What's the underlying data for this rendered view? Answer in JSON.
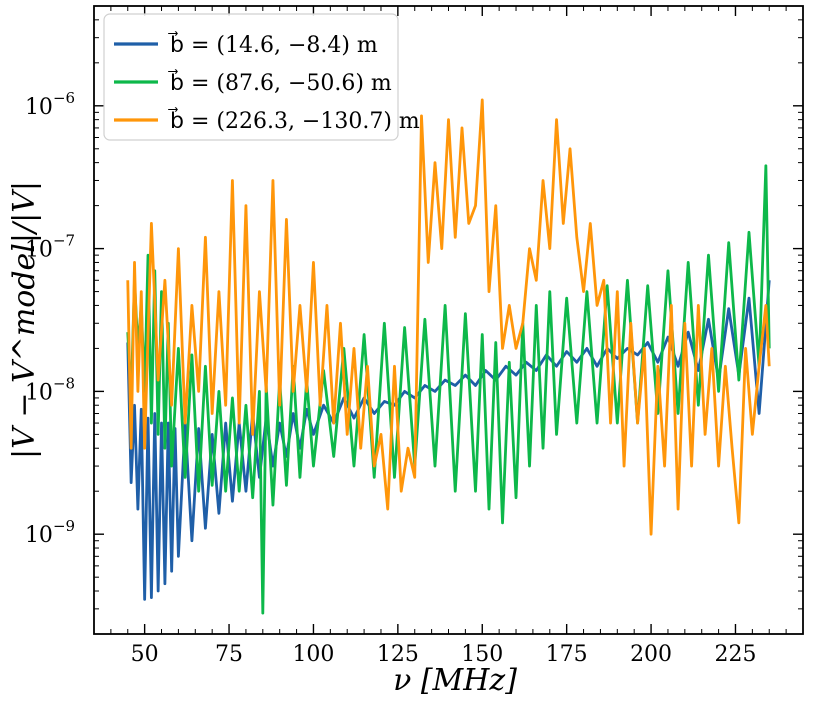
{
  "chart_data": {
    "type": "line",
    "title": "",
    "xlabel": "ν [MHz]",
    "ylabel": "|V − V^model|/|V|",
    "xlim": [
      35,
      245
    ],
    "ylim": [
      2e-10,
      5e-06
    ],
    "yscale": "log",
    "x_ticks": [
      50,
      75,
      100,
      125,
      150,
      175,
      200,
      225
    ],
    "x_tick_labels": [
      "50",
      "75",
      "100",
      "125",
      "150",
      "175",
      "200",
      "225"
    ],
    "y_ticks": [
      1e-09,
      1e-08,
      1e-07,
      1e-06
    ],
    "y_tick_labels": [
      "10",
      "10",
      "10",
      "10"
    ],
    "y_tick_exponents": [
      "−9",
      "−8",
      "−7",
      "−6"
    ],
    "legend_position": "top-left",
    "grid": false,
    "series": [
      {
        "name": "b⃗ = (14.6, −8.4) m",
        "color": "#1f5fa8",
        "x": [
          45,
          46,
          47,
          48,
          49,
          50,
          51,
          52,
          53,
          54,
          55,
          56,
          57,
          58,
          59,
          60,
          62,
          64,
          66,
          68,
          70,
          72,
          74,
          76,
          78,
          80,
          82,
          84,
          86,
          88,
          90,
          92,
          94,
          96,
          98,
          100,
          103,
          106,
          109,
          112,
          115,
          118,
          121,
          124,
          127,
          130,
          133,
          136,
          139,
          142,
          145,
          148,
          151,
          154,
          157,
          160,
          163,
          166,
          169,
          172,
          175,
          178,
          181,
          184,
          187,
          190,
          193,
          196,
          199,
          202,
          205,
          208,
          211,
          214,
          217,
          220,
          223,
          226,
          229,
          232,
          235
        ],
        "values": [
          2.2e-08,
          2.3e-09,
          8e-09,
          1.5e-09,
          7.5e-09,
          3.5e-10,
          6.5e-09,
          3.6e-10,
          7e-09,
          4e-10,
          6e-09,
          4.5e-10,
          6e-09,
          5.5e-10,
          5.5e-09,
          7e-10,
          6e-09,
          9e-10,
          5.5e-09,
          1.1e-09,
          5e-09,
          1.4e-09,
          6e-09,
          1.7e-09,
          6e-09,
          2e-09,
          7e-09,
          2.5e-09,
          6.5e-09,
          3e-09,
          6e-09,
          3.5e-09,
          7e-09,
          4e-09,
          7.5e-09,
          5e-09,
          8e-09,
          6e-09,
          9e-09,
          6.5e-09,
          9e-09,
          7e-09,
          8.5e-09,
          8e-09,
          1e-08,
          9e-09,
          1.1e-08,
          1e-08,
          1.2e-08,
          1.1e-08,
          1.3e-08,
          1.1e-08,
          1.4e-08,
          1.2e-08,
          1.5e-08,
          1.3e-08,
          1.6e-08,
          1.4e-08,
          1.8e-08,
          1.5e-08,
          1.9e-08,
          1.6e-08,
          2e-08,
          1.5e-08,
          2e-08,
          1.7e-08,
          2e-08,
          1.8e-08,
          2.2e-08,
          1.6e-08,
          2.4e-08,
          1.5e-08,
          2.6e-08,
          1.4e-08,
          3.2e-08,
          1.2e-08,
          3.8e-08,
          1.3e-08,
          4.5e-08,
          7e-09,
          6e-08
        ]
      },
      {
        "name": "b⃗ = (87.6, −50.6) m",
        "color": "#0db84a",
        "x": [
          45,
          46,
          47,
          48,
          49,
          50,
          51,
          52,
          53,
          54,
          55,
          56,
          57,
          58,
          60,
          62,
          64,
          66,
          68,
          70,
          72,
          74,
          76,
          78,
          80,
          82,
          84,
          85,
          86,
          88,
          90,
          92,
          94,
          96,
          98,
          100,
          103,
          106,
          109,
          112,
          115,
          118,
          121,
          124,
          127,
          130,
          133,
          136,
          139,
          142,
          145,
          148,
          150,
          152,
          154,
          156,
          158,
          160,
          162,
          164,
          166,
          168,
          170,
          172,
          175,
          178,
          181,
          184,
          187,
          190,
          193,
          196,
          199,
          202,
          205,
          208,
          211,
          214,
          217,
          220,
          223,
          226,
          229,
          232,
          234,
          235
        ],
        "values": [
          2.6e-08,
          9e-09,
          6e-08,
          2e-08,
          4e-08,
          1e-08,
          9e-08,
          6e-09,
          7e-08,
          5e-09,
          5e-08,
          4e-09,
          3e-08,
          3e-09,
          2e-08,
          2.5e-09,
          1.8e-08,
          2e-09,
          1.5e-08,
          2.2e-09,
          1e-08,
          2e-09,
          9e-09,
          2e-09,
          8e-09,
          1.8e-09,
          1e-08,
          2.8e-10,
          1.1e-08,
          1.6e-09,
          1.2e-08,
          2.2e-09,
          1.5e-08,
          2.5e-09,
          1.2e-08,
          3e-09,
          1.4e-08,
          3.5e-09,
          2e-08,
          3e-09,
          2.5e-08,
          2.5e-09,
          3e-08,
          2.5e-09,
          2.8e-08,
          3e-09,
          3.2e-08,
          3e-09,
          4e-08,
          2e-09,
          3.5e-08,
          2e-09,
          2.5e-08,
          1.5e-09,
          2.2e-08,
          1.2e-09,
          1.6e-08,
          1.8e-09,
          3e-08,
          3e-09,
          4e-08,
          4e-09,
          5e-08,
          5e-09,
          4.5e-08,
          6e-09,
          5e-08,
          6e-09,
          5.5e-08,
          6e-09,
          6e-08,
          6e-09,
          5.5e-08,
          7e-09,
          7e-08,
          7e-09,
          8e-08,
          8e-09,
          9e-08,
          1e-08,
          1.1e-07,
          1.2e-08,
          1.3e-07,
          1.5e-08,
          3.8e-07,
          2e-08
        ]
      },
      {
        "name": "b⃗ = (226.3, −130.7) m",
        "color": "#ff960a",
        "x": [
          45,
          46,
          47,
          48,
          49,
          50,
          52,
          54,
          56,
          58,
          60,
          62,
          64,
          66,
          68,
          70,
          72,
          74,
          76,
          78,
          80,
          82,
          84,
          86,
          88,
          90,
          92,
          94,
          96,
          98,
          100,
          102,
          104,
          106,
          108,
          110,
          112,
          114,
          116,
          118,
          120,
          122,
          124,
          126,
          128,
          130,
          132,
          134,
          136,
          138,
          140,
          142,
          144,
          146,
          148,
          150,
          152,
          154,
          156,
          158,
          160,
          162,
          164,
          166,
          168,
          170,
          172,
          174,
          176,
          178,
          180,
          182,
          184,
          186,
          188,
          190,
          192,
          194,
          196,
          198,
          200,
          202,
          204,
          206,
          208,
          210,
          212,
          214,
          216,
          218,
          220,
          222,
          224,
          226,
          228,
          230,
          232,
          234,
          235
        ],
        "values": [
          6e-08,
          4e-09,
          8e-08,
          1e-08,
          5e-08,
          4e-09,
          1.5e-07,
          1.2e-08,
          6e-08,
          8e-09,
          1e-07,
          6e-09,
          4e-08,
          1e-08,
          1.2e-07,
          7e-09,
          5e-08,
          8e-09,
          3e-07,
          6e-09,
          2e-07,
          5e-09,
          5e-08,
          1e-08,
          3e-07,
          8e-09,
          1.6e-07,
          1e-08,
          4e-08,
          1e-08,
          8e-08,
          8e-09,
          4e-08,
          6e-09,
          3e-08,
          5e-09,
          2e-08,
          4e-09,
          1.5e-08,
          3e-09,
          5e-09,
          1.5e-09,
          1.5e-08,
          2e-09,
          4e-09,
          2.5e-09,
          8.5e-07,
          8e-08,
          4e-07,
          1e-07,
          8e-07,
          1.2e-07,
          7e-07,
          1.5e-07,
          2e-07,
          1.1e-06,
          5e-08,
          2e-07,
          2e-08,
          4e-08,
          2e-08,
          3e-08,
          1e-07,
          6e-08,
          3e-07,
          1e-07,
          8e-07,
          1.5e-07,
          5e-07,
          1.2e-07,
          5e-08,
          1.5e-07,
          4e-08,
          6e-08,
          6e-09,
          5e-08,
          3e-09,
          3e-08,
          6e-09,
          2e-08,
          1e-09,
          1.5e-08,
          3e-09,
          4e-08,
          1.5e-09,
          3e-08,
          3e-09,
          4e-08,
          5e-09,
          2e-08,
          3e-09,
          1.5e-08,
          4e-09,
          1.2e-09,
          2e-08,
          5e-09,
          1.5e-08,
          4e-08,
          1.5e-08
        ]
      }
    ]
  }
}
